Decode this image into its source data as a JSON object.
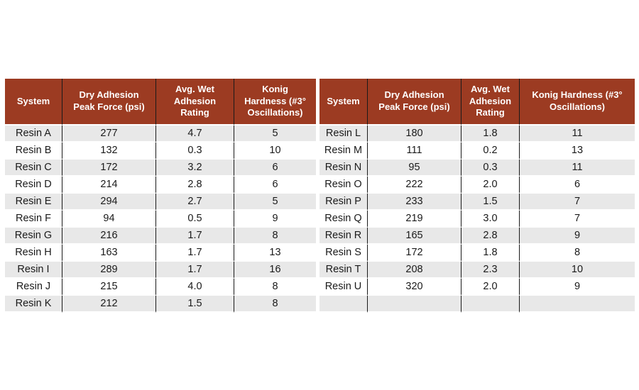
{
  "figure": {
    "description": "Resin performance comparison table: dry adhesion, wet adhesion and Konig hardness for resin systems A through U",
    "background": "#ffffff"
  },
  "colors": {
    "header_bg": "#9c3b22",
    "header_text": "#ffffff",
    "row_alt": "#e8e8e8",
    "row_bg": "#ffffff",
    "grid_line": "#1a1a1a",
    "body_text": "#1a1a1a"
  },
  "chart_data": [
    {
      "type": "table",
      "name": "left-table",
      "columns": [
        "System",
        "Dry Adhesion Peak Force (psi)",
        "Avg. Wet Adhesion Rating",
        "Konig Hardness (#3° Oscillations)"
      ],
      "header_lines": [
        [
          "System"
        ],
        [
          "Dry Adhesion",
          "Peak Force (psi)"
        ],
        [
          "Avg. Wet",
          "Adhesion",
          "Rating"
        ],
        [
          "Konig",
          "Hardness (#3°",
          "Oscillations)"
        ]
      ],
      "rows": [
        [
          "Resin A",
          "277",
          "4.7",
          "5"
        ],
        [
          "Resin B",
          "132",
          "0.3",
          "10"
        ],
        [
          "Resin C",
          "172",
          "3.2",
          "6"
        ],
        [
          "Resin D",
          "214",
          "2.8",
          "6"
        ],
        [
          "Resin E",
          "294",
          "2.7",
          "5"
        ],
        [
          "Resin F",
          "94",
          "0.5",
          "9"
        ],
        [
          "Resin G",
          "216",
          "1.7",
          "8"
        ],
        [
          "Resin H",
          "163",
          "1.7",
          "13"
        ],
        [
          "Resin I",
          "289",
          "1.7",
          "16"
        ],
        [
          "Resin J",
          "215",
          "4.0",
          "8"
        ],
        [
          "Resin K",
          "212",
          "1.5",
          "8"
        ]
      ]
    },
    {
      "type": "table",
      "name": "right-table",
      "columns": [
        "System",
        "Dry Adhesion Peak Force (psi)",
        "Avg. Wet Adhesion Rating",
        "Konig Hardness (#3° Oscillations)"
      ],
      "header_lines": [
        [
          "System"
        ],
        [
          "Dry Adhesion",
          "Peak Force (psi)"
        ],
        [
          "Avg. Wet",
          "Adhesion",
          "Rating"
        ],
        [
          "Konig Hardness (#3°",
          "Oscillations)"
        ]
      ],
      "rows": [
        [
          "Resin L",
          "180",
          "1.8",
          "11"
        ],
        [
          "Resin M",
          "111",
          "0.2",
          "13"
        ],
        [
          "Resin N",
          "95",
          "0.3",
          "11"
        ],
        [
          "Resin O",
          "222",
          "2.0",
          "6"
        ],
        [
          "Resin P",
          "233",
          "1.5",
          "7"
        ],
        [
          "Resin Q",
          "219",
          "3.0",
          "7"
        ],
        [
          "Resin R",
          "165",
          "2.8",
          "9"
        ],
        [
          "Resin S",
          "172",
          "1.8",
          "8"
        ],
        [
          "Resin T",
          "208",
          "2.3",
          "10"
        ],
        [
          "Resin U",
          "320",
          "2.0",
          "9"
        ],
        [
          "",
          "",
          "",
          ""
        ]
      ]
    }
  ]
}
